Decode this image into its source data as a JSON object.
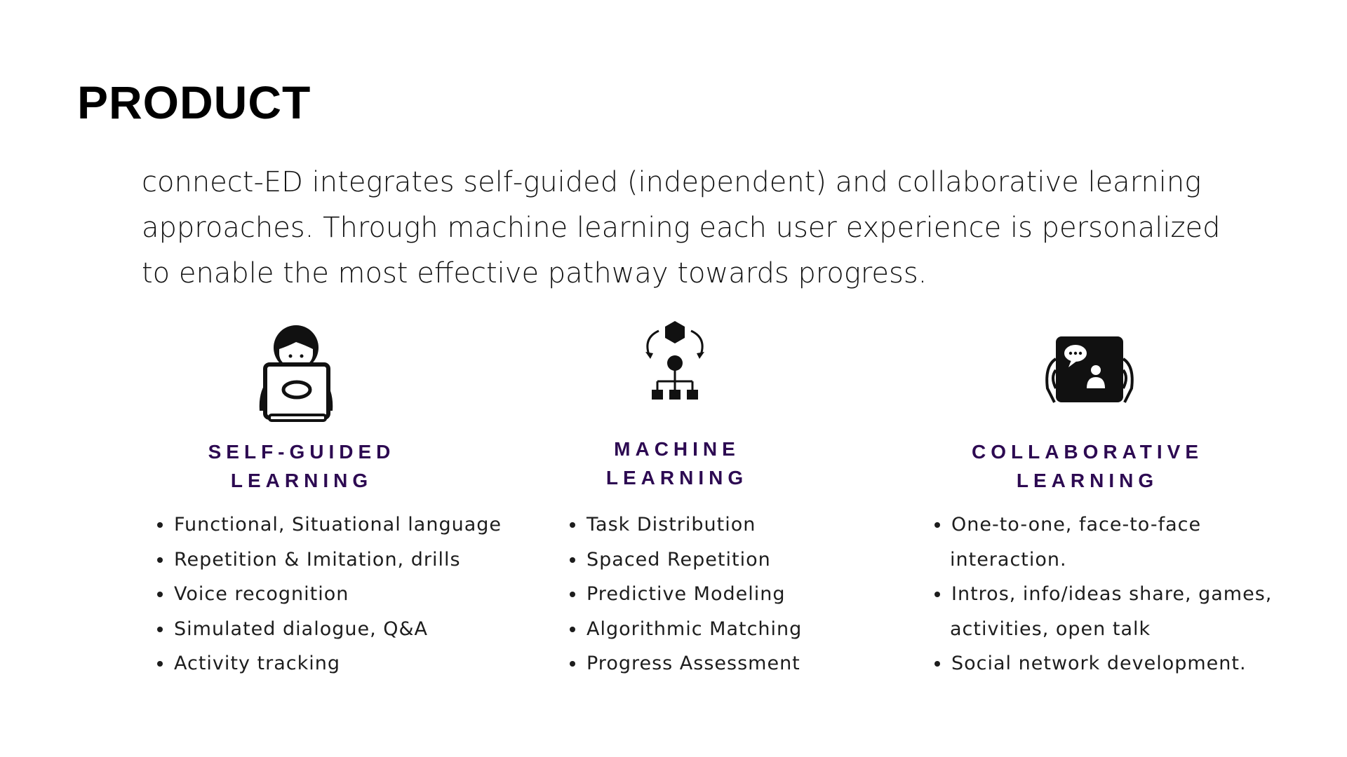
{
  "title": "PRODUCT",
  "intro": "connect-ED integrates self-guided (independent) and collaborative learning approaches. Through machine learning each user experience is personalized to enable the most effective pathway towards progress.",
  "colors": {
    "heading": "#2d0a52",
    "text": "#1d1d1d",
    "icon": "#111111"
  },
  "columns": [
    {
      "icon": "person-laptop-icon",
      "heading_line1": "SELF-GUIDED",
      "heading_line2": "LEARNING",
      "items": [
        "Functional, Situational language",
        "Repetition & Imitation, drills",
        "Voice recognition",
        "Simulated dialogue, Q&A",
        "Activity tracking"
      ]
    },
    {
      "icon": "machine-learning-network-icon",
      "heading_line1": "MACHINE",
      "heading_line2": "LEARNING",
      "items": [
        "Task Distribution",
        "Spaced Repetition",
        "Predictive Modeling",
        "Algorithmic Matching",
        "Progress Assessment"
      ]
    },
    {
      "icon": "tablet-video-chat-icon",
      "heading_line1": "COLLABORATIVE",
      "heading_line2": "LEARNING",
      "items": [
        "One-to-one, face-to-face",
        "interaction.",
        "Intros, info/ideas share, games,",
        "activities, open talk",
        "Social network development."
      ]
    }
  ]
}
